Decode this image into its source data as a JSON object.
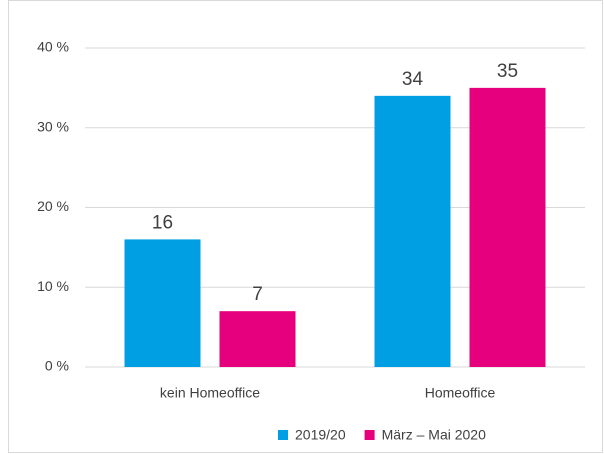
{
  "chart_data": {
    "type": "bar",
    "categories": [
      "kein Homeoffice",
      "Homeoffice"
    ],
    "series": [
      {
        "name": "2019/20",
        "color": "#009fe3",
        "values": [
          16,
          34
        ]
      },
      {
        "name": "März – Mai 2020",
        "color": "#e6007e",
        "values": [
          7,
          35
        ]
      }
    ],
    "ylim": [
      0,
      40
    ],
    "yticks": [
      {
        "value": 0,
        "label": "0 %"
      },
      {
        "value": 10,
        "label": "10 %"
      },
      {
        "value": 20,
        "label": "20 %"
      },
      {
        "value": 30,
        "label": "30 %"
      },
      {
        "value": 40,
        "label": "40 %"
      }
    ],
    "grid": true,
    "legend": "bottom"
  }
}
